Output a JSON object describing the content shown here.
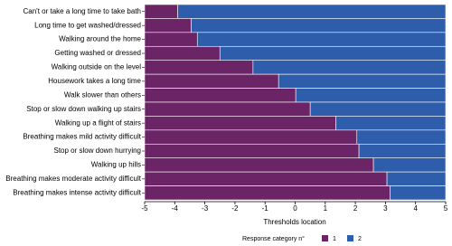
{
  "chart_data": {
    "type": "threshold-bar",
    "x_label": "Thresholds location",
    "categories": [
      "Can't or take a long time to take bath",
      "Long time to get washed/dressed",
      "Walking around the home",
      "Getting washed or dressed",
      "Walking outside on the level",
      "Housework takes a long time",
      "Walk slower than others",
      "Stop or slow down walking up stairs",
      "Walking up a flight of stairs",
      "Breathing makes mild activity difficult",
      "Stop or slow down hurrying",
      "Walking up hills",
      "Breathing makes moderate activity difficult",
      "Breathing makes intense activity  difficult"
    ],
    "values": [
      -3.9,
      -3.45,
      -3.25,
      -2.5,
      -1.4,
      -0.55,
      0.02,
      0.5,
      1.35,
      2.05,
      2.12,
      2.6,
      3.05,
      3.15
    ],
    "xlim": [
      -5,
      5
    ],
    "xticks": [
      -5,
      -4,
      -3,
      -2,
      -1,
      0,
      1,
      2,
      3,
      4,
      5
    ],
    "legend": {
      "title": "Response category n°",
      "entries": [
        {
          "name": "1",
          "color": "#6b2466"
        },
        {
          "name": "2",
          "color": "#2e5dab"
        }
      ]
    }
  }
}
